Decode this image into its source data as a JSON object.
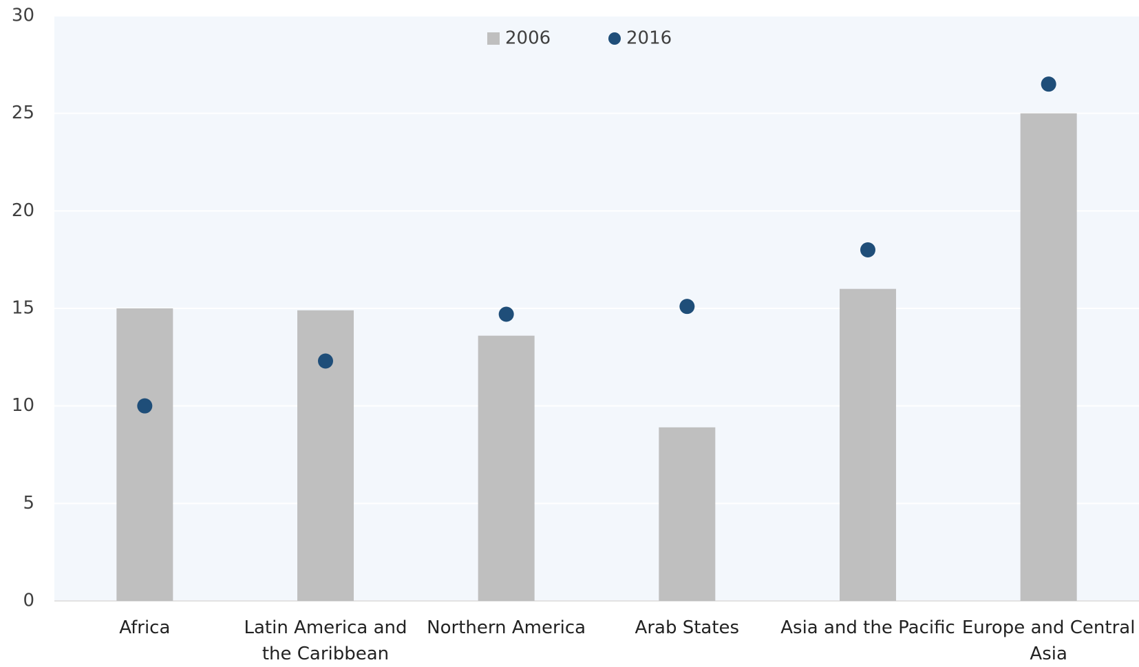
{
  "chart_data": {
    "type": "bar",
    "categories": [
      "Africa",
      "Latin America and the Caribbean",
      "Northern America",
      "Arab States",
      "Asia and the Pacific",
      "Europe and Central Asia"
    ],
    "series": [
      {
        "name": "2006",
        "type": "bar",
        "color": "#bfbfbf",
        "values": [
          15.0,
          14.9,
          13.6,
          8.9,
          16.0,
          25.0
        ]
      },
      {
        "name": "2016",
        "type": "scatter",
        "color": "#1f4e79",
        "values": [
          10.0,
          12.3,
          14.7,
          15.1,
          18.0,
          26.5
        ]
      }
    ],
    "ylim": [
      0,
      30
    ],
    "yticks": [
      0,
      5,
      10,
      15,
      20,
      25,
      30
    ],
    "grid": true,
    "legend": "top"
  }
}
